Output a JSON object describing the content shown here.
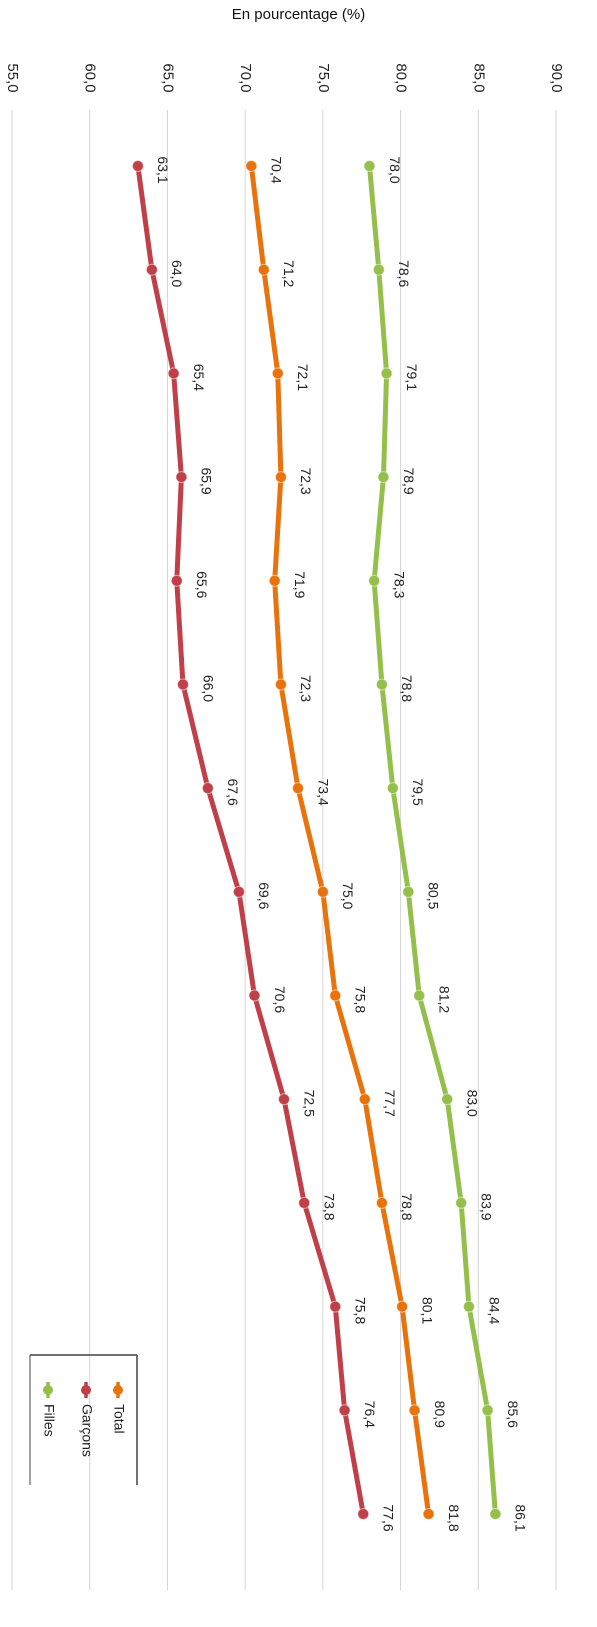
{
  "chart_data": {
    "type": "line",
    "title": "En pourcentage (%)",
    "xlabel": "",
    "ylabel": "",
    "orientation": "rotated-90-clockwise",
    "ylim": [
      55,
      90
    ],
    "yticks": [
      "55,0",
      "60,0",
      "65,0",
      "70,0",
      "75,0",
      "80,0",
      "85,0",
      "90,0"
    ],
    "categories_count": 14,
    "legend": {
      "placement": "bottom-left",
      "order": [
        "Total",
        "Garçons",
        "Filles"
      ]
    },
    "grid": true,
    "colors": {
      "Total": "#E8720C",
      "Garçons": "#C0404A",
      "Filles": "#94BF4B"
    },
    "series": [
      {
        "name": "Filles",
        "values": [
          78.0,
          78.6,
          79.1,
          78.9,
          78.3,
          78.8,
          79.5,
          80.5,
          81.2,
          83.0,
          83.9,
          84.4,
          85.6,
          86.1
        ],
        "labels": [
          "78,0",
          "78,6",
          "79,1",
          "78,9",
          "78,3",
          "78,8",
          "79,5",
          "80,5",
          "81,2",
          "83,0",
          "83,9",
          "84,4",
          "85,6",
          "86,1"
        ]
      },
      {
        "name": "Total",
        "values": [
          70.4,
          71.2,
          72.1,
          72.3,
          71.9,
          72.3,
          73.4,
          75.0,
          75.8,
          77.7,
          78.8,
          80.1,
          80.9,
          81.8
        ],
        "labels": [
          "70,4",
          "71,2",
          "72,1",
          "72,3",
          "71,9",
          "72,3",
          "73,4",
          "75,0",
          "75,8",
          "77,7",
          "78,8",
          "80,1",
          "80,9",
          "81,8"
        ]
      },
      {
        "name": "Garçons",
        "values": [
          63.1,
          64.0,
          65.4,
          65.9,
          65.6,
          66.0,
          67.6,
          69.6,
          70.6,
          72.5,
          73.8,
          75.8,
          76.4,
          77.6
        ],
        "labels": [
          "63,1",
          "64,0",
          "65,4",
          "65,9",
          "65,6",
          "66,0",
          "67,6",
          "69,6",
          "70,6",
          "72,5",
          "73,8",
          "75,8",
          "76,4",
          "77,6"
        ]
      }
    ]
  }
}
